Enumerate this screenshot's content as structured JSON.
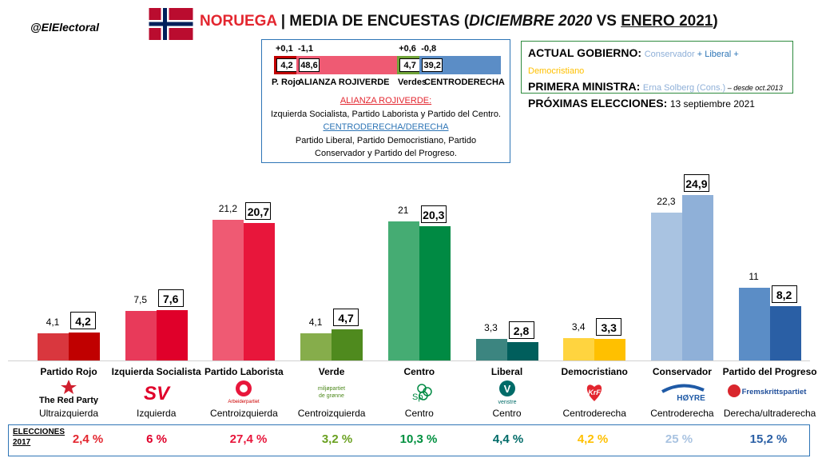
{
  "header": {
    "handle": "@ElElectoral",
    "country": "NORUEGA",
    "title_mid": " | MEDIA DE ENCUESTAS (",
    "title_italic": "DICIEMBRE 2020",
    "title_vs": " VS ",
    "title_under": "ENERO 2021",
    "title_paren": ")"
  },
  "flag_colors": {
    "red": "#ba0c2f",
    "white": "#ffffff",
    "blue": "#00205b"
  },
  "blocs": {
    "segments": [
      {
        "name": "P. Rojo",
        "value": "4,2",
        "change": "+0,1",
        "share": 4.2,
        "color": "#c00000"
      },
      {
        "name": "ALIANZA ROJIVERDE",
        "value": "48,6",
        "change": "-1,1",
        "share": 48.6,
        "color": "#ef5a73"
      },
      {
        "name": "Verdes",
        "value": "4,7",
        "change": "+0,6",
        "share": 4.7,
        "color": "#70a339"
      },
      {
        "name": "CENTRODERECHA",
        "value": "39,2",
        "change": "-0,8",
        "share": 39.2,
        "color": "#5b8dc6"
      }
    ],
    "info_red_title": "ALIANZA ROJIVERDE:",
    "info_red_text": "Izquierda Socialista, Partido Laborista y Partido del Centro.",
    "info_blue_title": "CENTRODERECHA/DERECHA",
    "info_blue_text1": "Partido Liberal, Partido Democristiano, Partido",
    "info_blue_text2": "Conservador y Partido del Progreso."
  },
  "government": {
    "gov_label": "ACTUAL GOBIERNO:",
    "gov_p1": "Conservador",
    "gov_sep1": " + ",
    "gov_p2": "Liberal",
    "gov_sep2": " + ",
    "gov_p3": "Democristiano",
    "pm_label": "PRIMERA MINISTRA:",
    "pm_value": "Erna Solberg (Cons.)",
    "pm_since": " – desde oct.2013",
    "next_label": "PRÓXIMAS ELECCIONES:",
    "next_value": "13 septiembre 2021"
  },
  "elections": {
    "label_line1": "ELECCIONES",
    "label_line2": "2017"
  },
  "chart_data": {
    "type": "bar",
    "categories": [
      "Partido Rojo",
      "Izquierda Socialista",
      "Partido Laborista",
      "Verde",
      "Centro",
      "Liberal",
      "Democristiano",
      "Conservador",
      "Partido del Progreso"
    ],
    "series": [
      {
        "name": "",
        "values": [
          4.1,
          7.5,
          21.2,
          4.1,
          21,
          3.3,
          3.4,
          22.3,
          11
        ]
      },
      {
        "name": "",
        "values": [
          4.2,
          7.6,
          20.7,
          4.7,
          20.3,
          2.8,
          3.3,
          24.9,
          8.2
        ]
      }
    ],
    "labels_dec": [
      "4,1",
      "7,5",
      "21,2",
      "4,1",
      "21",
      "3,3",
      "3,4",
      "22,3",
      "11"
    ],
    "labels_jan": [
      "4,2",
      "7,6",
      "20,7",
      "4,7",
      "20,3",
      "2,8",
      "3,3",
      "24,9",
      "8,2"
    ],
    "colors_dec": [
      "#d9373e",
      "#e83a5a",
      "#ef5a73",
      "#86ad4b",
      "#45ac73",
      "#3c8580",
      "#ffd43f",
      "#a9c3e1",
      "#5b8dc6"
    ],
    "colors_jan": [
      "#c00000",
      "#e0002a",
      "#e8163b",
      "#4f8a1e",
      "#008a43",
      "#005e5c",
      "#ffc000",
      "#8fb0d8",
      "#2a5fa5"
    ],
    "ylim": [
      0,
      30
    ]
  },
  "parties": [
    {
      "name": "Partido Rojo",
      "logo_text": "The Red Party",
      "ideology": "Ultraizquierda",
      "result_2017": "2,4 %",
      "result_color": "#e3262f"
    },
    {
      "name": "Izquierda Socialista",
      "logo_text": "SV",
      "ideology": "Izquierda",
      "result_2017": "6 %",
      "result_color": "#e0002a"
    },
    {
      "name": "Partido Laborista",
      "logo_text": "Arbeiderpartiet",
      "ideology": "Centroizquierda",
      "result_2017": "27,4 %",
      "result_color": "#e8163b"
    },
    {
      "name": "Verde",
      "logo_text": "miljøpartiet de grønne",
      "ideology": "Centroizquierda",
      "result_2017": "3,2 %",
      "result_color": "#6aa121"
    },
    {
      "name": "Centro",
      "logo_text": "Sp",
      "ideology": "Centro",
      "result_2017": "10,3 %",
      "result_color": "#00903f"
    },
    {
      "name": "Liberal",
      "logo_text": "venstre",
      "ideology": "Centro",
      "result_2017": "4,4 %",
      "result_color": "#006b68"
    },
    {
      "name": "Democristiano",
      "logo_text": "KrF",
      "ideology": "Centroderecha",
      "result_2017": "4,2 %",
      "result_color": "#ffc000"
    },
    {
      "name": "Conservador",
      "logo_text": "HØYRE",
      "ideology": "Centroderecha",
      "result_2017": "25 %",
      "result_color": "#a9c3e1"
    },
    {
      "name": "Partido del Progreso",
      "logo_text": "Fremskrittspartiet",
      "ideology": "Derecha/ultraderecha",
      "result_2017": "15,2 %",
      "result_color": "#2a5fa5"
    }
  ]
}
